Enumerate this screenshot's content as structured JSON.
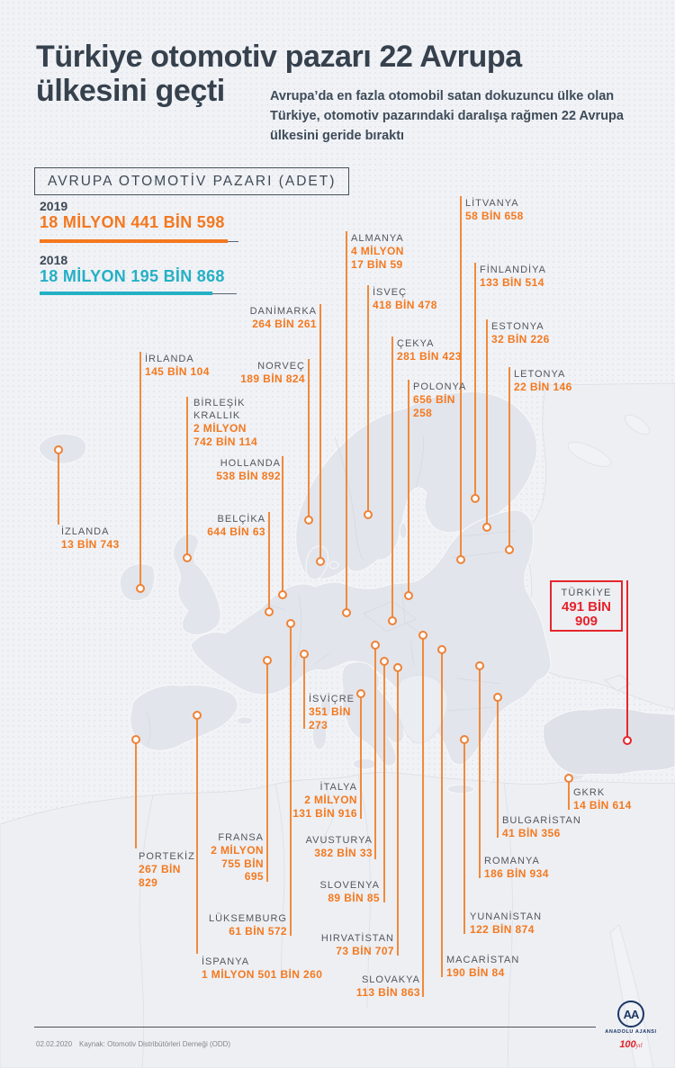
{
  "header": {
    "title_line1": "Türkiye otomotiv pazarı 22 Avrupa",
    "title_line2": "ülkesini geçti",
    "subtitle": "Avrupa’da en fazla otomobil satan dokuzuncu ülke olan Türkiye, otomotiv pazarındaki daralışa rağmen 22 Avrupa ülkesini geride bıraktı"
  },
  "legend": {
    "box_title": "AVRUPA OTOMOTİV PAZARI (ADET)",
    "items": [
      {
        "year": "2019",
        "value": "18 MİLYON 441 BİN 598",
        "color": "#f4781f"
      },
      {
        "year": "2018",
        "value": "18 MİLYON 195 BİN 868",
        "color": "#25b0c5"
      }
    ]
  },
  "colors": {
    "accent_orange": "#f4791f",
    "accent_teal": "#25b0c5",
    "accent_red": "#e6262c",
    "title_text": "#36414d",
    "label_text": "#53575e"
  },
  "turkey_callout": {
    "name": "TÜRKİYE",
    "value": "491 BİN\n909"
  },
  "countries": [
    {
      "id": "izlanda",
      "name": "İZLANDA",
      "value": "13 BİN 743"
    },
    {
      "id": "irlanda",
      "name": "İRLANDA",
      "value": "145 BİN 104"
    },
    {
      "id": "birlesik-krallik",
      "name": "BİRLEŞİK\nKRALLIK",
      "value": "2 MİLYON\n742 BİN 114"
    },
    {
      "id": "norvec",
      "name": "NORVEÇ",
      "value": "189 BİN 824"
    },
    {
      "id": "danimarka",
      "name": "DANİMARKA",
      "value": "264 BİN 261"
    },
    {
      "id": "isvec",
      "name": "İSVEÇ",
      "value": "418 BİN 478"
    },
    {
      "id": "almanya",
      "name": "ALMANYA",
      "value": "4 MİLYON\n17 BİN 59"
    },
    {
      "id": "litvanya",
      "name": "LİTVANYA",
      "value": "58 BİN 658"
    },
    {
      "id": "finlandiya",
      "name": "FİNLANDİYA",
      "value": "133 BİN 514"
    },
    {
      "id": "estonya",
      "name": "ESTONYA",
      "value": "32 BİN 226"
    },
    {
      "id": "letonya",
      "name": "LETONYA",
      "value": "22 BİN 146"
    },
    {
      "id": "cekya",
      "name": "ÇEKYA",
      "value": "281 BİN 423"
    },
    {
      "id": "polonya",
      "name": "POLONYA",
      "value": "656 BİN\n258"
    },
    {
      "id": "hollanda",
      "name": "HOLLANDA",
      "value": "538 BİN 892"
    },
    {
      "id": "belcika",
      "name": "BELÇİKA",
      "value": "644 BİN 63"
    },
    {
      "id": "isvicre",
      "name": "İSVİÇRE",
      "value": "351 BİN\n273"
    },
    {
      "id": "luksemburg",
      "name": "LÜKSEMBURG",
      "value": "61 BİN 572"
    },
    {
      "id": "fransa",
      "name": "FRANSA",
      "value": "2 MİLYON\n755 BİN\n695"
    },
    {
      "id": "italya",
      "name": "İTALYA",
      "value": "2 MİLYON\n131 BİN 916"
    },
    {
      "id": "avusturya",
      "name": "AVUSTURYA",
      "value": "382 BİN 33"
    },
    {
      "id": "slovenya",
      "name": "SLOVENYA",
      "value": "89 BİN 85"
    },
    {
      "id": "hirvatistan",
      "name": "HIRVATİSTAN",
      "value": "73 BİN 707"
    },
    {
      "id": "slovakya",
      "name": "SLOVAKYA",
      "value": "113 BİN 863"
    },
    {
      "id": "macaristan",
      "name": "MACARİSTAN",
      "value": "190 BİN 84"
    },
    {
      "id": "yunanistan",
      "name": "YUNANİSTAN",
      "value": "122 BİN 874"
    },
    {
      "id": "romanya",
      "name": "ROMANYA",
      "value": "186 BİN 934"
    },
    {
      "id": "bulgaristan",
      "name": "BULGARİSTAN",
      "value": "41 BİN 356"
    },
    {
      "id": "gkrk",
      "name": "GKRK",
      "value": "14 BİN 614"
    },
    {
      "id": "ispanya",
      "name": "İSPANYA",
      "value": "1 MİLYON 501 BİN 260"
    },
    {
      "id": "portekiz",
      "name": "PORTEKİZ",
      "value": "267 BİN\n829"
    }
  ],
  "footer": {
    "date": "02.02.2020",
    "source": "Kaynak: Otomotiv Distribütörleri Derneği (ODD)",
    "agency_monogram": "AA",
    "agency_name": "ANADOLU AJANSI",
    "centennial": "100",
    "centennial_suffix": "yıl"
  }
}
